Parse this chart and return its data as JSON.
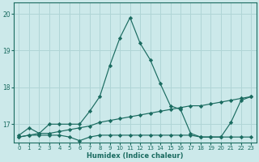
{
  "xlabel": "Humidex (Indice chaleur)",
  "bg_color": "#cce9ea",
  "grid_color": "#b0d5d6",
  "line_color": "#1a6b60",
  "xlim": [
    -0.5,
    23.5
  ],
  "ylim": [
    16.5,
    20.3
  ],
  "yticks": [
    17,
    18,
    19,
    20
  ],
  "xticks": [
    0,
    1,
    2,
    3,
    4,
    5,
    6,
    7,
    8,
    9,
    10,
    11,
    12,
    13,
    14,
    15,
    16,
    17,
    18,
    19,
    20,
    21,
    22,
    23
  ],
  "line1_x": [
    0,
    1,
    2,
    3,
    4,
    5,
    6,
    7,
    8,
    9,
    10,
    11,
    12,
    13,
    14,
    15,
    16,
    17,
    18,
    19,
    20,
    21,
    22,
    23
  ],
  "line1_y": [
    16.7,
    16.9,
    16.75,
    17.0,
    17.0,
    17.0,
    17.0,
    17.35,
    17.75,
    18.6,
    19.35,
    19.9,
    19.2,
    18.75,
    18.1,
    17.5,
    17.4,
    16.75,
    16.65,
    16.65,
    16.65,
    17.05,
    17.65,
    17.75
  ],
  "line2_x": [
    0,
    1,
    2,
    3,
    4,
    5,
    6,
    7,
    8,
    9,
    10,
    11,
    12,
    13,
    14,
    15,
    16,
    17,
    18,
    19,
    20,
    21,
    22,
    23
  ],
  "line2_y": [
    16.65,
    16.7,
    16.7,
    16.7,
    16.7,
    16.65,
    16.55,
    16.65,
    16.7,
    16.7,
    16.7,
    16.7,
    16.7,
    16.7,
    16.7,
    16.7,
    16.7,
    16.7,
    16.65,
    16.65,
    16.65,
    16.65,
    16.65,
    16.65
  ],
  "line3_x": [
    0,
    1,
    2,
    3,
    4,
    5,
    6,
    7,
    8,
    9,
    10,
    11,
    12,
    13,
    14,
    15,
    16,
    17,
    18,
    19,
    20,
    21,
    22,
    23
  ],
  "line3_y": [
    16.65,
    16.7,
    16.75,
    16.75,
    16.8,
    16.85,
    16.9,
    16.95,
    17.05,
    17.1,
    17.15,
    17.2,
    17.25,
    17.3,
    17.35,
    17.4,
    17.45,
    17.5,
    17.5,
    17.55,
    17.6,
    17.65,
    17.7,
    17.75
  ]
}
